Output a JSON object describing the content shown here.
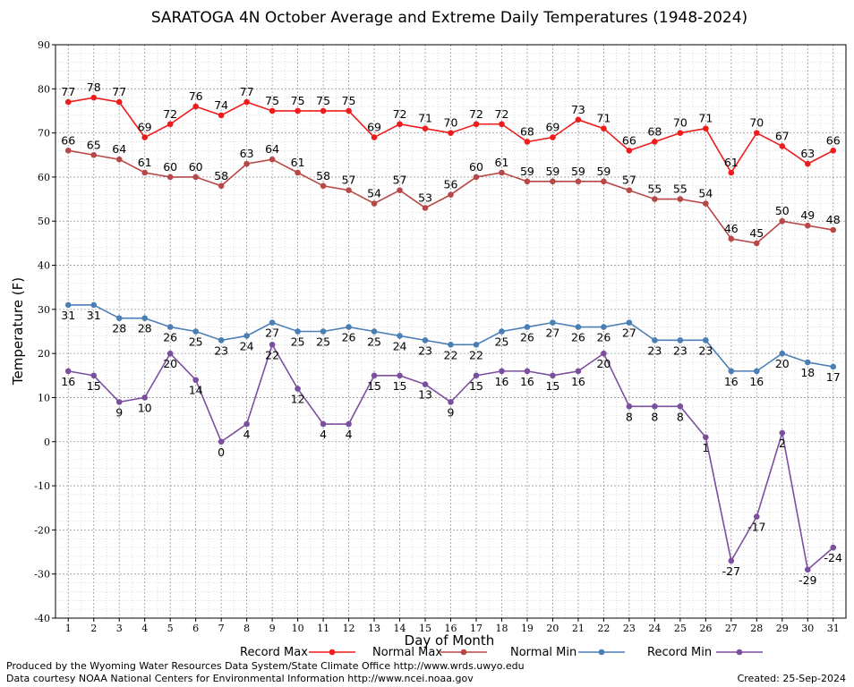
{
  "chart_data": {
    "type": "line",
    "title": "SARATOGA 4N October Average and Extreme Daily Temperatures (1948-2024)",
    "xlabel": "Day of Month",
    "ylabel": "Temperature (F)",
    "ylim": [
      -40,
      90
    ],
    "xlim": [
      0.5,
      31.5
    ],
    "y_ticks": [
      -40,
      -30,
      -20,
      -10,
      0,
      10,
      20,
      30,
      40,
      50,
      60,
      70,
      80,
      90
    ],
    "x": [
      1,
      2,
      3,
      4,
      5,
      6,
      7,
      8,
      9,
      10,
      11,
      12,
      13,
      14,
      15,
      16,
      17,
      18,
      19,
      20,
      21,
      22,
      23,
      24,
      25,
      26,
      27,
      28,
      29,
      30,
      31
    ],
    "grid": true,
    "legend_position": "bottom",
    "series": [
      {
        "name": "Record Max",
        "color": "#ee1c1c",
        "label_pos": "above",
        "values": [
          77,
          78,
          77,
          69,
          72,
          76,
          74,
          77,
          75,
          75,
          75,
          75,
          69,
          72,
          71,
          70,
          72,
          72,
          68,
          69,
          73,
          71,
          66,
          68,
          70,
          71,
          61,
          70,
          67,
          63,
          66
        ]
      },
      {
        "name": "Normal Max",
        "color": "#b84848",
        "label_pos": "above",
        "values": [
          66,
          65,
          64,
          61,
          60,
          60,
          58,
          63,
          64,
          61,
          58,
          57,
          54,
          57,
          53,
          56,
          60,
          61,
          59,
          59,
          59,
          59,
          57,
          55,
          55,
          54,
          46,
          45,
          50,
          49,
          48
        ]
      },
      {
        "name": "Normal Min",
        "color": "#4a7fb5",
        "label_pos": "below",
        "values": [
          31,
          31,
          28,
          28,
          26,
          25,
          23,
          24,
          27,
          25,
          25,
          26,
          25,
          24,
          23,
          22,
          22,
          25,
          26,
          27,
          26,
          26,
          27,
          23,
          23,
          23,
          16,
          16,
          20,
          18,
          17
        ]
      },
      {
        "name": "Record Min",
        "color": "#7b4f9e",
        "label_pos": "below",
        "values": [
          16,
          15,
          9,
          10,
          20,
          14,
          0,
          4,
          22,
          12,
          4,
          4,
          15,
          15,
          13,
          9,
          15,
          16,
          16,
          15,
          16,
          20,
          8,
          8,
          8,
          1,
          -27,
          -17,
          2,
          -29,
          -24
        ]
      }
    ]
  },
  "footer": {
    "produced_by": "Produced by the Wyoming Water Resources Data System/State Climate Office http://www.wrds.uwyo.edu",
    "courtesy": "Data courtesy NOAA National Centers for Environmental Information http://www.ncei.noaa.gov",
    "created": "Created:  25-Sep-2024"
  }
}
